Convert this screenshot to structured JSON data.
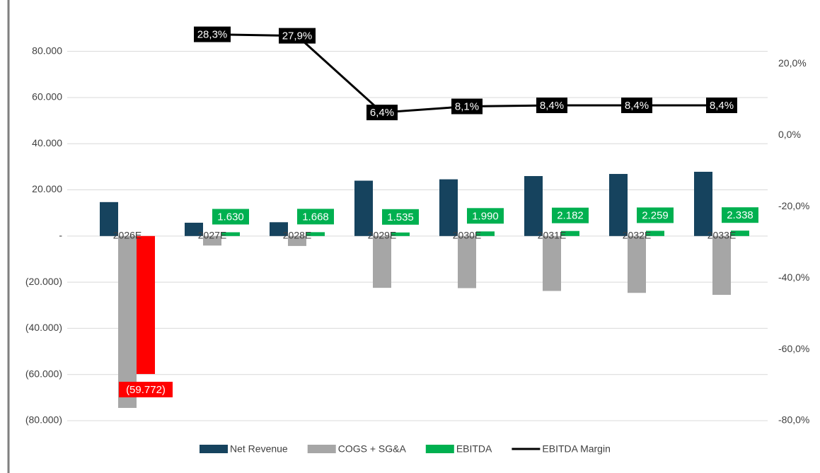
{
  "chart_data": {
    "type": "combo",
    "categories": [
      "2026E",
      "2027E",
      "2028E",
      "2029E",
      "2030E",
      "2031E",
      "2032E",
      "2033E"
    ],
    "series": [
      {
        "name": "Net Revenue",
        "type": "bar",
        "color": "#16435e",
        "values": [
          14700,
          5760,
          5978,
          23984,
          24568,
          25976,
          26893,
          27833
        ]
      },
      {
        "name": "COGS + SG&A",
        "type": "bar",
        "color": "#a6a6a6",
        "values": [
          -74472,
          -4130,
          -4310,
          -22449,
          -22578,
          -23794,
          -24634,
          -25495
        ]
      },
      {
        "name": "EBITDA",
        "type": "bar",
        "color": "#00b050",
        "negative_color": "#ff0000",
        "values": [
          -59772,
          1630,
          1668,
          1535,
          1990,
          2182,
          2259,
          2338
        ],
        "value_labels": [
          "(59.772)",
          "1.630",
          "1.668",
          "1.535",
          "1.990",
          "2.182",
          "2.259",
          "2.338"
        ]
      },
      {
        "name": "EBITDA Margin",
        "type": "line",
        "axis": "y2",
        "color": "#000000",
        "values": [
          null,
          28.3,
          27.9,
          6.4,
          8.1,
          8.4,
          8.4,
          8.4
        ],
        "value_labels": [
          null,
          "28,3%",
          "27,9%",
          "6,4%",
          "8,1%",
          "8,4%",
          "8,4%",
          "8,4%"
        ]
      }
    ],
    "ylim": [
      -80000,
      90000
    ],
    "yticks": [
      {
        "value": 80000,
        "label": "80.000"
      },
      {
        "value": 60000,
        "label": "60.000"
      },
      {
        "value": 40000,
        "label": "40.000"
      },
      {
        "value": 20000,
        "label": "20.000"
      },
      {
        "value": 0,
        "label": "-"
      },
      {
        "value": -20000,
        "label": "(20.000)"
      },
      {
        "value": -40000,
        "label": "(40.000)"
      },
      {
        "value": -60000,
        "label": "(60.000)"
      },
      {
        "value": -80000,
        "label": "(80.000)"
      }
    ],
    "y2lim": [
      -80,
      30
    ],
    "y2ticks": [
      {
        "value": 20,
        "label": "20,0%"
      },
      {
        "value": 0,
        "label": "0,0%"
      },
      {
        "value": -20,
        "label": "-20,0%"
      },
      {
        "value": -40,
        "label": "-40,0%"
      },
      {
        "value": -60,
        "label": "-60,0%"
      },
      {
        "value": -80,
        "label": "-80,0%"
      }
    ],
    "grid": true
  }
}
